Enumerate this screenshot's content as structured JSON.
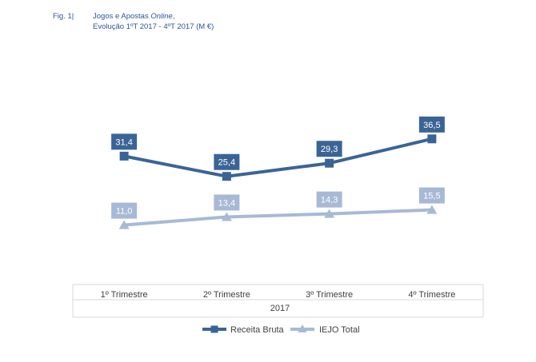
{
  "figure": {
    "number": "Fig. 1|",
    "title_prefix": "Jogos e Apostas ",
    "title_italic": "Online",
    "title_suffix": ",",
    "subtitle": "Evolução 1ºT 2017 - 4ºT 2017 (M €)"
  },
  "chart_data": {
    "type": "line",
    "title": "Jogos e Apostas Online, Evolução 1ºT 2017 - 4ºT 2017 (M €)",
    "categories": [
      "1º Trimestre",
      "2º Trimestre",
      "3º Trimestre",
      "4º Trimestre"
    ],
    "group_label": "2017",
    "series": [
      {
        "name": "Receita Bruta",
        "values": [
          31.4,
          25.4,
          29.3,
          36.5
        ],
        "labels": [
          "31,4",
          "25,4",
          "29,3",
          "36,5"
        ],
        "color": "#3b6496",
        "marker": "square"
      },
      {
        "name": "IEJO Total",
        "values": [
          11.0,
          13.4,
          14.3,
          15.5
        ],
        "labels": [
          "11,0",
          "13,4",
          "14,3",
          "15,5"
        ],
        "color": "#a7b9d5",
        "marker": "triangle"
      }
    ],
    "legend_position": "bottom",
    "grid": false
  }
}
